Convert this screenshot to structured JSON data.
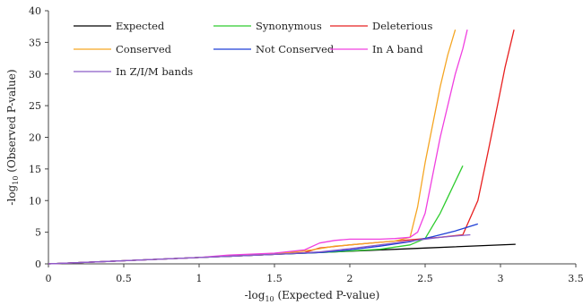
{
  "chart_data": {
    "type": "line",
    "xlabel_pre": "-log",
    "xlabel_sub": "10",
    "xlabel_post": " (Expected P-value)",
    "ylabel_pre": "-log",
    "ylabel_sub": "10",
    "ylabel_post": " (Observed P-value)",
    "xlim": [
      0,
      3.5
    ],
    "ylim": [
      0,
      40
    ],
    "xticks": [
      0,
      0.5,
      1,
      1.5,
      2,
      2.5,
      3,
      3.5
    ],
    "xtick_labels": [
      "0",
      "0.5",
      "1",
      "1.5",
      "2",
      "2.5",
      "3",
      "3.5"
    ],
    "yticks": [
      0,
      5,
      10,
      15,
      20,
      25,
      30,
      35,
      40
    ],
    "ytick_labels": [
      "0",
      "5",
      "10",
      "15",
      "20",
      "25",
      "30",
      "35",
      "40"
    ],
    "grid": false,
    "legend_position": "top-left",
    "series": [
      {
        "name": "Expected",
        "color": "#000000",
        "x": [
          0,
          0.5,
          1,
          1.5,
          2,
          2.5,
          3.1
        ],
        "y": [
          0,
          0.5,
          1,
          1.5,
          2,
          2.5,
          3.1
        ]
      },
      {
        "name": "Synonymous",
        "color": "#2ecc2e",
        "x": [
          0,
          0.5,
          1,
          1.5,
          1.9,
          2.2,
          2.4,
          2.5,
          2.55,
          2.6,
          2.65,
          2.7,
          2.75
        ],
        "y": [
          0,
          0.5,
          1,
          1.5,
          1.9,
          2.3,
          3.0,
          4.0,
          6.0,
          8.0,
          10.5,
          13.0,
          15.5
        ]
      },
      {
        "name": "Deleterious",
        "color": "#e82020",
        "x": [
          0,
          0.5,
          1,
          1.5,
          1.7,
          1.8,
          2.0,
          2.2,
          2.4,
          2.6,
          2.75,
          2.85,
          2.92,
          2.98,
          3.03,
          3.09
        ],
        "y": [
          0,
          0.5,
          1,
          1.5,
          1.8,
          2.5,
          3.0,
          3.4,
          3.8,
          4.2,
          4.6,
          10.0,
          18.0,
          25.0,
          31.0,
          37.0
        ]
      },
      {
        "name": "Conserved",
        "color": "#f5a623",
        "x": [
          0,
          0.5,
          1,
          1.3,
          1.6,
          1.75,
          1.9,
          2.1,
          2.3,
          2.4,
          2.45,
          2.5,
          2.55,
          2.6,
          2.65,
          2.7
        ],
        "y": [
          0,
          0.5,
          1,
          1.4,
          1.8,
          2.2,
          2.8,
          3.2,
          3.6,
          4.2,
          9.0,
          16.0,
          22.0,
          28.0,
          33.0,
          37.0
        ]
      },
      {
        "name": "Not Conserved",
        "color": "#1f3fd6",
        "x": [
          0,
          0.5,
          1,
          1.5,
          1.8,
          2.0,
          2.2,
          2.4,
          2.55,
          2.7,
          2.85
        ],
        "y": [
          0,
          0.5,
          1,
          1.5,
          1.8,
          2.2,
          2.8,
          3.5,
          4.3,
          5.2,
          6.3
        ]
      },
      {
        "name": "In A band",
        "color": "#f040e0",
        "x": [
          0,
          0.5,
          1,
          1.2,
          1.5,
          1.7,
          1.8,
          1.9,
          2.0,
          2.2,
          2.3,
          2.4,
          2.45,
          2.5,
          2.55,
          2.6,
          2.65,
          2.7,
          2.75,
          2.78
        ],
        "y": [
          0,
          0.5,
          1,
          1.4,
          1.7,
          2.2,
          3.3,
          3.7,
          3.9,
          3.9,
          4.0,
          4.2,
          5.0,
          8.0,
          14.0,
          20.0,
          25.0,
          30.0,
          34.0,
          37.0
        ]
      },
      {
        "name": "In Z/I/M bands",
        "color": "#8a5cc8",
        "x": [
          0,
          0.5,
          1,
          1.5,
          1.8,
          2.0,
          2.2,
          2.4,
          2.6,
          2.8
        ],
        "y": [
          0,
          0.5,
          1,
          1.5,
          1.9,
          2.4,
          3.0,
          3.6,
          4.2,
          4.6
        ]
      }
    ]
  }
}
